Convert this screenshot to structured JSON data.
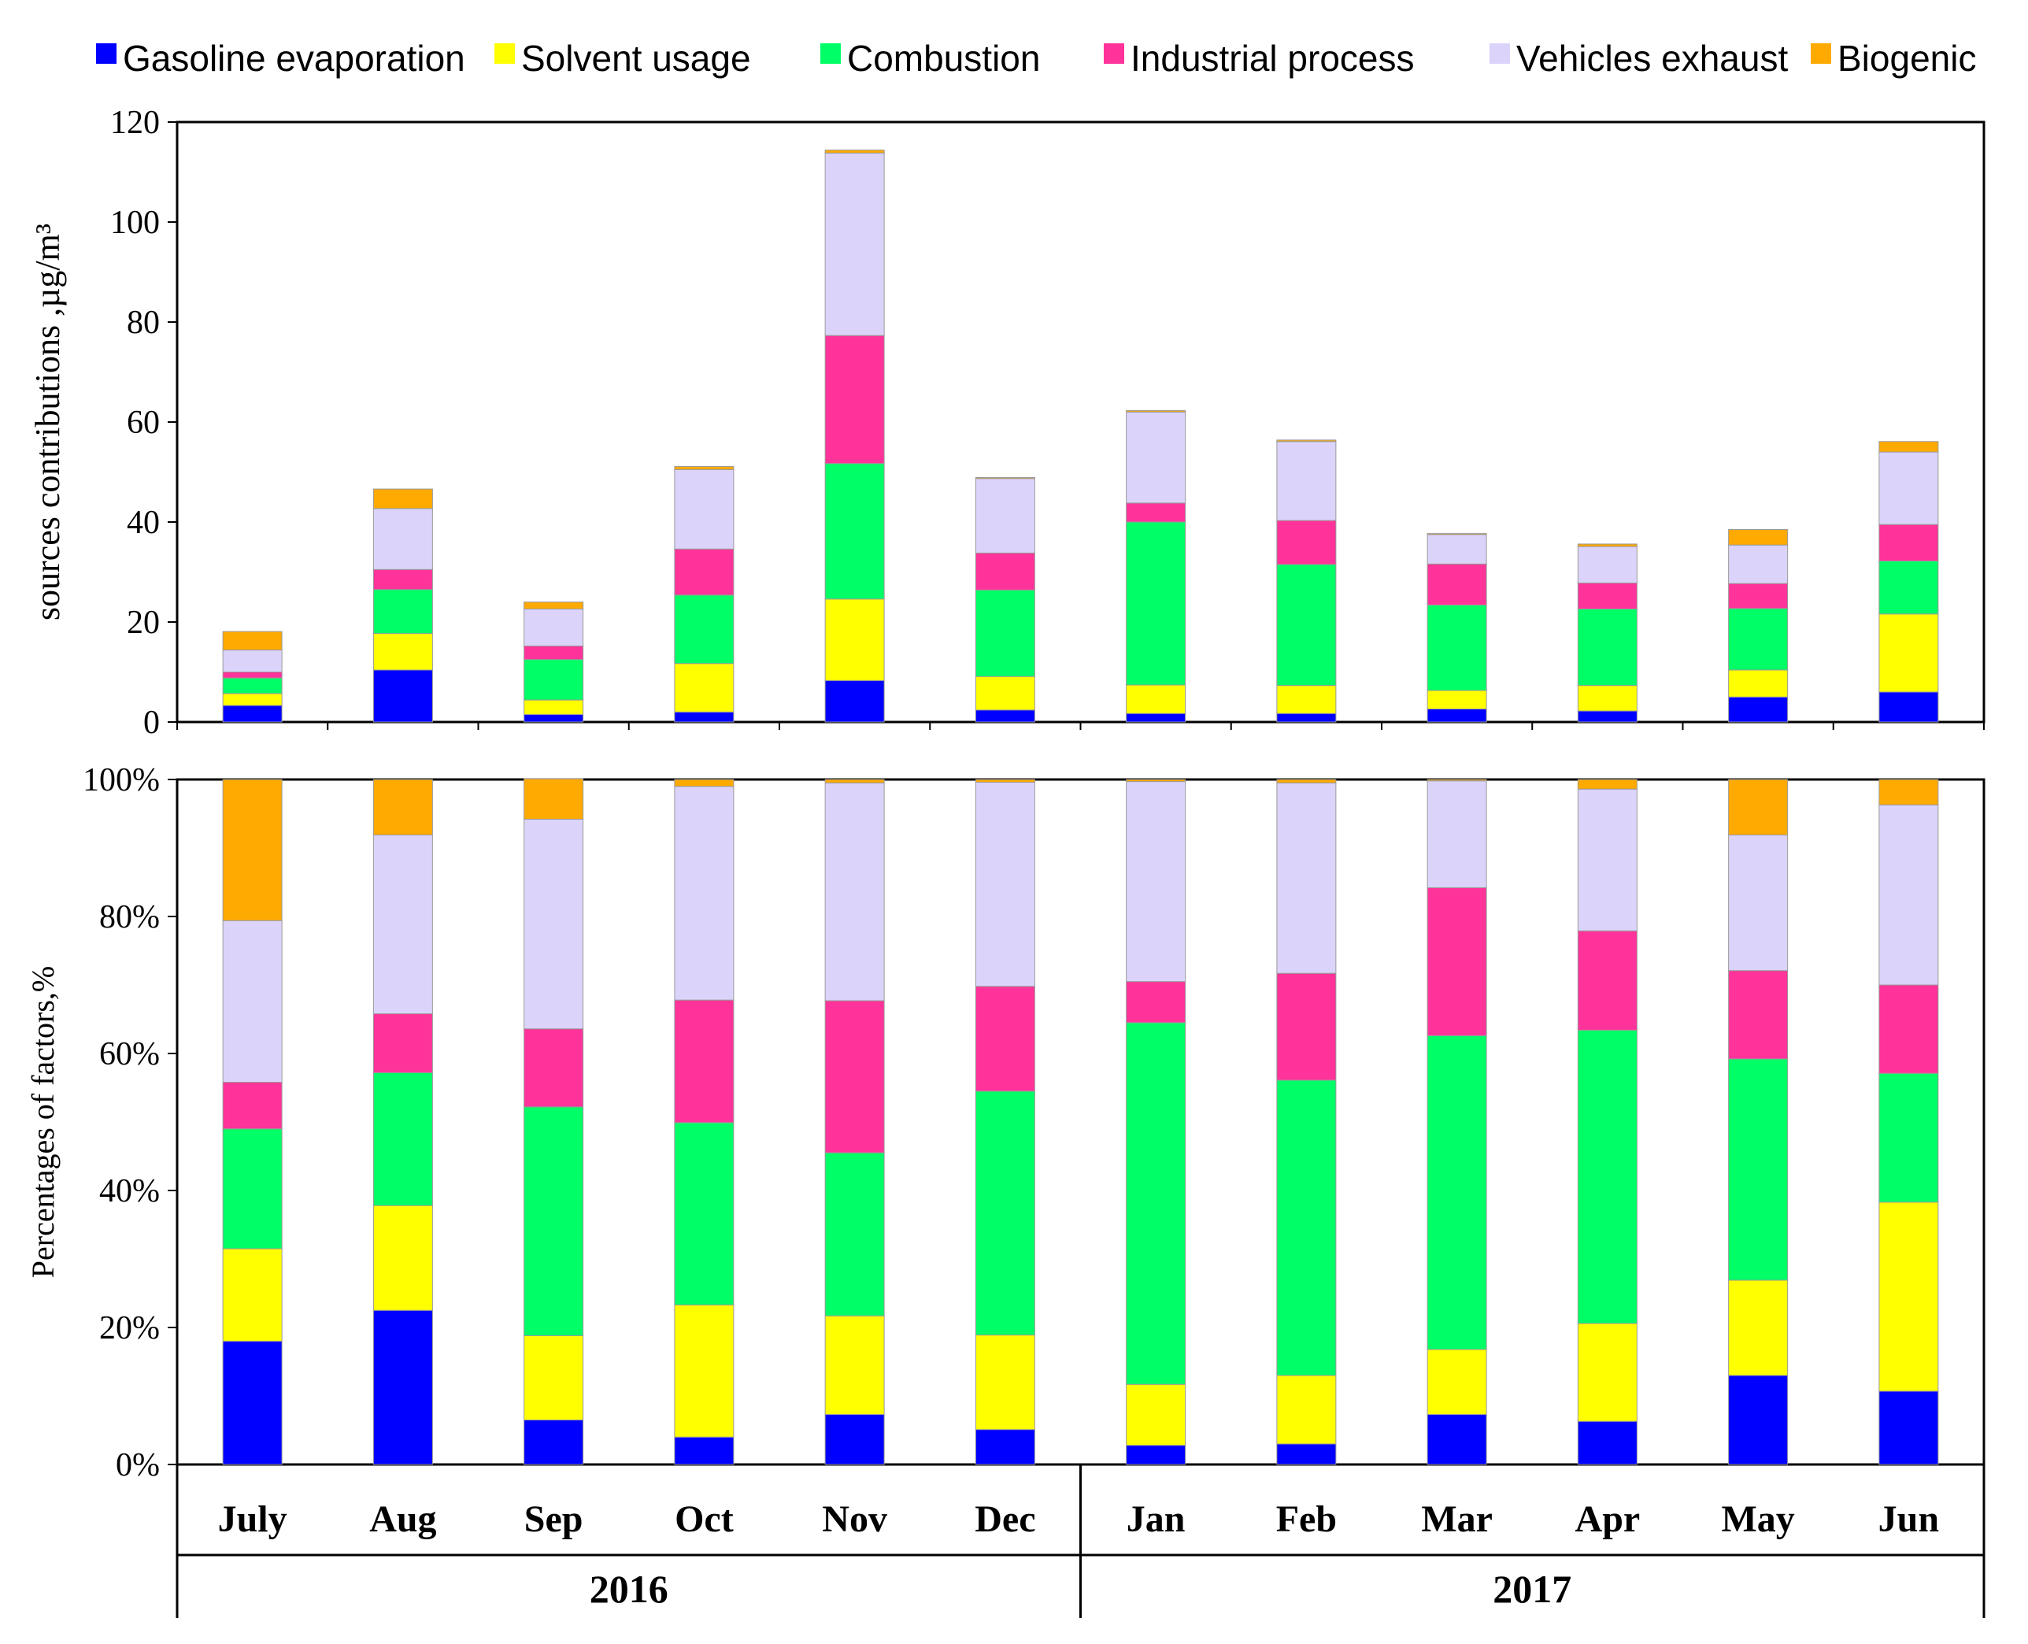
{
  "chart_data": [
    {
      "type": "bar",
      "stacked": true,
      "panel": "top",
      "title": "",
      "ylabel": "sources contributions ,µg/m³",
      "ylim": [
        0,
        120
      ],
      "yticks": [
        "0",
        "20",
        "40",
        "60",
        "80",
        "100",
        "120"
      ],
      "categories": [
        "July",
        "Aug",
        "Sep",
        "Oct",
        "Nov",
        "Dec",
        "Jan",
        "Feb",
        "Mar",
        "Apr",
        "May",
        "Jun"
      ],
      "series": [
        {
          "name": "Gasoline evaporation",
          "color": "#0000ff",
          "values": [
            3.3,
            10.4,
            1.5,
            2.0,
            8.3,
            2.4,
            1.7,
            1.7,
            2.6,
            2.2,
            5.0,
            6.0
          ]
        },
        {
          "name": "Solvent usage",
          "color": "#ffff00",
          "values": [
            2.4,
            7.3,
            2.9,
            9.7,
            16.3,
            6.7,
            5.7,
            5.6,
            3.7,
            5.1,
            5.4,
            15.6
          ]
        },
        {
          "name": "Combustion",
          "color": "#00ff66",
          "values": [
            3.1,
            8.8,
            8.1,
            13.7,
            27.1,
            17.3,
            32.6,
            24.2,
            17.1,
            15.3,
            12.3,
            10.6
          ]
        },
        {
          "name": "Industrial process",
          "color": "#ff3399",
          "values": [
            1.2,
            4.0,
            2.7,
            9.2,
            25.6,
            7.4,
            3.8,
            8.8,
            8.2,
            5.2,
            5.0,
            7.3
          ]
        },
        {
          "name": "Vehicles exhaust",
          "color": "#dcd3fa",
          "values": [
            4.4,
            12.2,
            7.4,
            15.9,
            36.5,
            14.9,
            18.2,
            15.8,
            5.9,
            7.3,
            7.7,
            14.5
          ]
        },
        {
          "name": "Biogenic",
          "color": "#ffaa00",
          "values": [
            3.7,
            3.9,
            1.4,
            0.6,
            0.6,
            0.2,
            0.3,
            0.3,
            0.2,
            0.5,
            3.1,
            2.1
          ]
        }
      ]
    },
    {
      "type": "bar",
      "stacked": true,
      "panel": "bottom",
      "title": "",
      "ylabel": "Percentages of factors,%",
      "ylim": [
        0,
        100
      ],
      "yticks": [
        "0%",
        "20%",
        "40%",
        "60%",
        "80%",
        "100%"
      ],
      "categories": [
        "July",
        "Aug",
        "Sep",
        "Oct",
        "Nov",
        "Dec",
        "Jan",
        "Feb",
        "Mar",
        "Apr",
        "May",
        "Jun"
      ],
      "series": [
        {
          "name": "Gasoline evaporation",
          "color": "#0000ff",
          "values": [
            18,
            22.5,
            6.5,
            4,
            7.3,
            5.1,
            2.8,
            3,
            7.3,
            6.3,
            13,
            10.7
          ]
        },
        {
          "name": "Solvent usage",
          "color": "#ffff00",
          "values": [
            13.5,
            15.3,
            12.3,
            19.3,
            14.4,
            13.8,
            8.9,
            10,
            9.5,
            14.3,
            13.9,
            27.6
          ]
        },
        {
          "name": "Combustion",
          "color": "#00ff66",
          "values": [
            17.5,
            19.4,
            33.4,
            26.6,
            23.8,
            35.6,
            52.8,
            43.1,
            45.8,
            42.8,
            32.3,
            18.8
          ]
        },
        {
          "name": "Industrial process",
          "color": "#ff3399",
          "values": [
            6.8,
            8.6,
            11.4,
            17.9,
            22.2,
            15.3,
            6,
            15.6,
            21.6,
            14.5,
            12.9,
            12.9
          ]
        },
        {
          "name": "Vehicles exhaust",
          "color": "#dcd3fa",
          "values": [
            23.6,
            26.1,
            30.6,
            31.2,
            31.8,
            29.8,
            29.2,
            27.8,
            15.6,
            20.7,
            19.8,
            26.3
          ]
        },
        {
          "name": "Biogenic",
          "color": "#ffaa00",
          "values": [
            20.6,
            8.1,
            5.9,
            1.0,
            0.5,
            0.4,
            0.3,
            0.5,
            0.2,
            1.4,
            8.1,
            3.7
          ]
        }
      ]
    }
  ],
  "legend": [
    {
      "label": "Gasoline evaporation",
      "color": "#0000ff"
    },
    {
      "label": "Solvent usage",
      "color": "#ffff00"
    },
    {
      "label": "Combustion",
      "color": "#00ff66"
    },
    {
      "label": "Industrial process",
      "color": "#ff3399"
    },
    {
      "label": "Vehicles exhaust",
      "color": "#dcd3fa"
    },
    {
      "label": "Biogenic",
      "color": "#ffaa00"
    }
  ],
  "year_groups": [
    {
      "label": "2016",
      "months": 6
    },
    {
      "label": "2017",
      "months": 6
    }
  ]
}
